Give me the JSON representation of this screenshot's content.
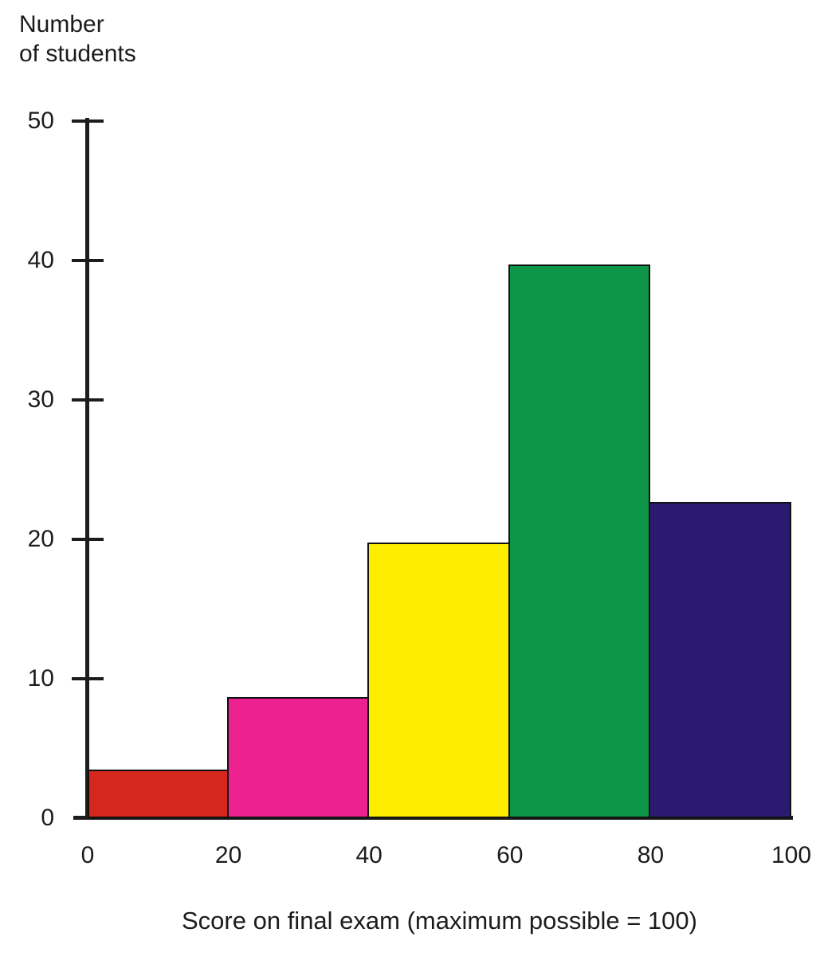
{
  "chart_data": {
    "type": "bar",
    "subtype": "histogram",
    "title": "",
    "ylabel": "Number\nof students",
    "xlabel": "Score on final exam (maximum possible = 100)",
    "ylim": [
      0,
      50
    ],
    "xlim": [
      0,
      100
    ],
    "yticks": [
      0,
      10,
      20,
      30,
      40,
      50
    ],
    "xticks": [
      0,
      20,
      40,
      60,
      80,
      100
    ],
    "grid": false,
    "legend": "none",
    "bins": [
      {
        "range": [
          0,
          20
        ],
        "value": 3.5,
        "color": "#d5271d"
      },
      {
        "range": [
          20,
          40
        ],
        "value": 8.7,
        "color": "#ed2290"
      },
      {
        "range": [
          40,
          60
        ],
        "value": 19.8,
        "color": "#fdee00"
      },
      {
        "range": [
          60,
          80
        ],
        "value": 39.7,
        "color": "#0d9648"
      },
      {
        "range": [
          80,
          100
        ],
        "value": 22.7,
        "color": "#2b1b70"
      }
    ],
    "axis_color": "#1c1c1c",
    "bar_outline_color": "#111111"
  }
}
